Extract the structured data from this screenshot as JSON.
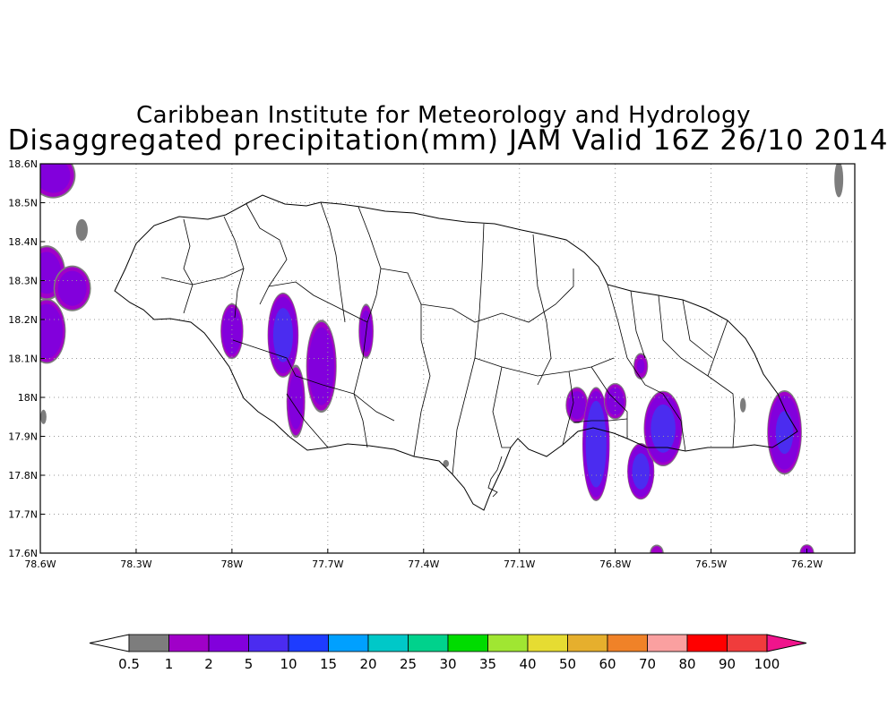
{
  "title_line1": "Caribbean Institute for Meteorology and Hydrology",
  "title_line2": "Disaggregated precipitation(mm) JAM Valid 16Z 26/10 2014",
  "map": {
    "region": "Jamaica",
    "lon_range": [
      -78.6,
      -76.05
    ],
    "lat_range": [
      17.6,
      18.6
    ],
    "gridlines": "dotted",
    "lon_tick_labels": [
      "78.6W",
      "78.3W",
      "78W",
      "77.7W",
      "77.4W",
      "77.1W",
      "76.8W",
      "76.5W",
      "76.2W"
    ],
    "lat_tick_labels": [
      "17.6N",
      "17.7N",
      "17.8N",
      "17.9N",
      "18N",
      "18.1N",
      "18.2N",
      "18.3N",
      "18.4N",
      "18.5N",
      "18.6N"
    ]
  },
  "colorbar": {
    "labels": [
      "0.5",
      "1",
      "2",
      "5",
      "10",
      "15",
      "20",
      "25",
      "30",
      "35",
      "40",
      "50",
      "60",
      "70",
      "80",
      "90",
      "100"
    ],
    "colors": [
      "#ffffff",
      "#7d7d7d",
      "#a000c8",
      "#8200dc",
      "#4b2cf0",
      "#1e3cff",
      "#00a0ff",
      "#00c8c8",
      "#00d28c",
      "#00dc00",
      "#a0e632",
      "#e6dc32",
      "#e6af2d",
      "#f08228",
      "#faa0a0",
      "#ff0000",
      "#f03c3c",
      "#f0148c"
    ]
  },
  "precip_cells": [
    {
      "lon": -78.56,
      "lat": 18.57,
      "rx": 0.06,
      "ry": 0.05,
      "max": 3
    },
    {
      "lon": -78.47,
      "lat": 18.43,
      "rx": 0.02,
      "ry": 0.03,
      "max": 0.8
    },
    {
      "lon": -78.58,
      "lat": 18.32,
      "rx": 0.05,
      "ry": 0.06,
      "max": 3
    },
    {
      "lon": -78.5,
      "lat": 18.28,
      "rx": 0.05,
      "ry": 0.05,
      "max": 3
    },
    {
      "lon": -78.58,
      "lat": 18.17,
      "rx": 0.05,
      "ry": 0.07,
      "max": 4
    },
    {
      "lon": -78.59,
      "lat": 17.95,
      "rx": 0.01,
      "ry": 0.02,
      "max": 0.8
    },
    {
      "lon": -78.0,
      "lat": 18.17,
      "rx": 0.03,
      "ry": 0.06,
      "max": 4
    },
    {
      "lon": -77.84,
      "lat": 18.16,
      "rx": 0.04,
      "ry": 0.09,
      "max": 6
    },
    {
      "lon": -77.8,
      "lat": 17.99,
      "rx": 0.025,
      "ry": 0.08,
      "max": 3
    },
    {
      "lon": -77.72,
      "lat": 18.08,
      "rx": 0.04,
      "ry": 0.1,
      "max": 4
    },
    {
      "lon": -77.58,
      "lat": 18.17,
      "rx": 0.02,
      "ry": 0.06,
      "max": 3
    },
    {
      "lon": -77.33,
      "lat": 17.83,
      "rx": 0.01,
      "ry": 0.01,
      "max": 0.8
    },
    {
      "lon": -76.92,
      "lat": 17.98,
      "rx": 0.03,
      "ry": 0.04,
      "max": 3
    },
    {
      "lon": -76.86,
      "lat": 17.88,
      "rx": 0.035,
      "ry": 0.12,
      "max": 8
    },
    {
      "lon": -76.8,
      "lat": 17.99,
      "rx": 0.03,
      "ry": 0.04,
      "max": 3
    },
    {
      "lon": -76.72,
      "lat": 18.08,
      "rx": 0.02,
      "ry": 0.03,
      "max": 2
    },
    {
      "lon": -76.72,
      "lat": 17.81,
      "rx": 0.035,
      "ry": 0.06,
      "max": 6
    },
    {
      "lon": -76.65,
      "lat": 17.92,
      "rx": 0.05,
      "ry": 0.08,
      "max": 6
    },
    {
      "lon": -76.4,
      "lat": 17.98,
      "rx": 0.01,
      "ry": 0.02,
      "max": 0.8
    },
    {
      "lon": -76.27,
      "lat": 17.91,
      "rx": 0.045,
      "ry": 0.09,
      "max": 5
    },
    {
      "lon": -76.67,
      "lat": 17.6,
      "rx": 0.02,
      "ry": 0.02,
      "max": 1.5
    },
    {
      "lon": -76.2,
      "lat": 17.6,
      "rx": 0.02,
      "ry": 0.02,
      "max": 2
    },
    {
      "lon": -76.1,
      "lat": 18.56,
      "rx": 0.015,
      "ry": 0.05,
      "max": 0.8
    }
  ]
}
